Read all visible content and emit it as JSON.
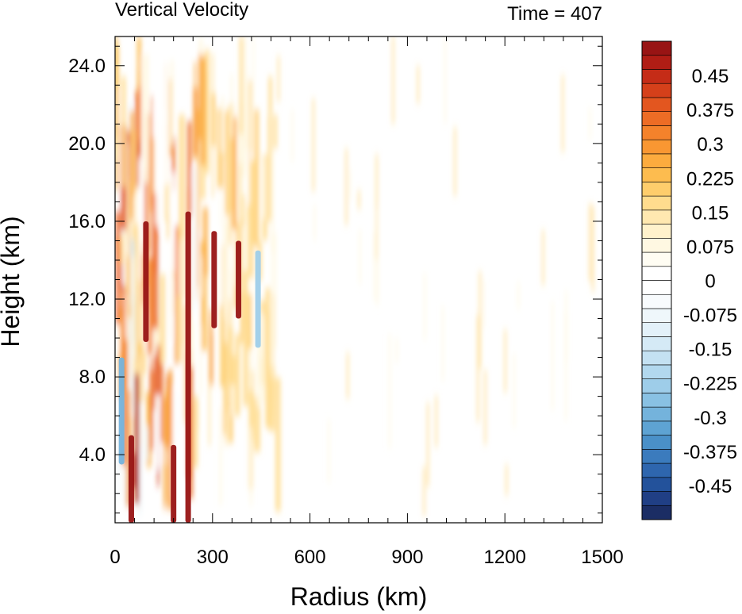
{
  "chart_data": {
    "type": "heatmap",
    "title": "Vertical Velocity",
    "time_label": "Time = 407",
    "xlabel": "Radius (km)",
    "ylabel": "Height (km)",
    "xlim": [
      0,
      1500
    ],
    "ylim": [
      0.5,
      25.5
    ],
    "x_ticks": [
      0,
      300,
      600,
      900,
      1200,
      1500
    ],
    "x_tick_labels": [
      "0",
      "300",
      "600",
      "900",
      "1200",
      "1500"
    ],
    "y_ticks": [
      4,
      8,
      12,
      16,
      20,
      24
    ],
    "y_tick_labels": [
      "4.0",
      "8.0",
      "12.0",
      "16.0",
      "20.0",
      "24.0"
    ],
    "colorbar": {
      "range": [
        -0.525,
        0.525
      ],
      "step": 0.025,
      "labels": [
        "0.45",
        "0.375",
        "0.3",
        "0.225",
        "0.15",
        "0.075",
        "0",
        "-0.075",
        "-0.15",
        "-0.225",
        "-0.3",
        "-0.375",
        "-0.45"
      ],
      "label_values": [
        0.45,
        0.375,
        0.3,
        0.225,
        0.15,
        0.075,
        0,
        -0.075,
        -0.15,
        -0.225,
        -0.3,
        -0.375,
        -0.45
      ],
      "colors": [
        "#1b2d64",
        "#203f85",
        "#23529b",
        "#2e66ae",
        "#3b7bbd",
        "#4a90c8",
        "#5ea3d3",
        "#74b3dc",
        "#89c1e3",
        "#9ecde9",
        "#b2d8ee",
        "#c4e1f2",
        "#d5eaf6",
        "#e3f1f9",
        "#eff7fb",
        "#f8fbfd",
        "#ffffff",
        "#ffffff",
        "#fffdf3",
        "#fff8e2",
        "#fff2cc",
        "#ffe8b0",
        "#ffdc8e",
        "#fecd6c",
        "#fdbc4f",
        "#fcab3e",
        "#f99732",
        "#f4822b",
        "#ed6c25",
        "#e3561f",
        "#d5401a",
        "#c52c17",
        "#b01d15",
        "#981414"
      ]
    },
    "features": [
      {
        "r": 95,
        "z0": 9.8,
        "z1": 16.0,
        "w": 0.55
      },
      {
        "r": 225,
        "z0": 0.5,
        "z1": 16.5,
        "w": 0.6
      },
      {
        "r": 305,
        "z0": 10.5,
        "z1": 15.5,
        "w": 0.5
      },
      {
        "r": 380,
        "z0": 11.0,
        "z1": 15.0,
        "w": 0.45
      },
      {
        "r": 50,
        "z0": 0.5,
        "z1": 5.0,
        "w": 0.5
      },
      {
        "r": 180,
        "z0": 0.5,
        "z1": 4.5,
        "w": 0.45
      },
      {
        "r": 440,
        "z0": 9.5,
        "z1": 14.5,
        "w": -0.3
      },
      {
        "r": 20,
        "z0": 3.5,
        "z1": 9.0,
        "w": -0.35
      }
    ]
  }
}
